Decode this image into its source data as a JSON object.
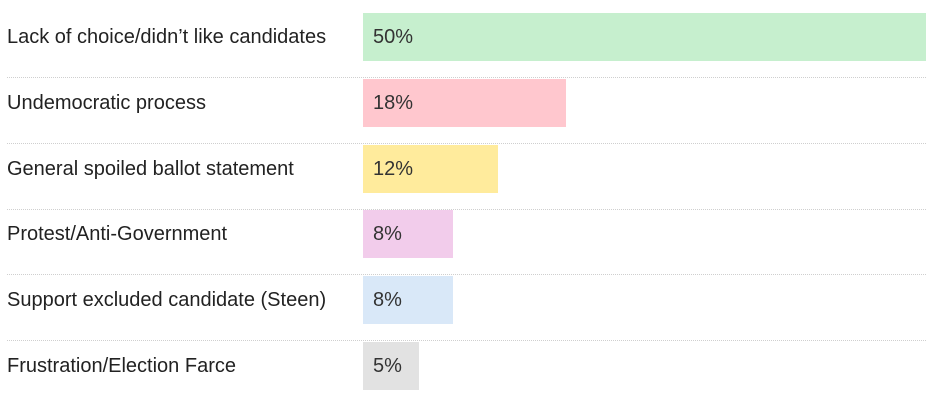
{
  "chart_data": {
    "type": "bar",
    "orientation": "horizontal",
    "categories": [
      "Lack of choice/didn’t like candidates",
      "Undemocratic process",
      "General spoiled ballot statement",
      "Protest/Anti-Government",
      "Support excluded candidate (Steen)",
      "Frustration/Election Farce"
    ],
    "values": [
      50,
      18,
      12,
      8,
      8,
      5
    ],
    "value_labels": [
      "50%",
      "18%",
      "12%",
      "8%",
      "8%",
      "5%"
    ],
    "colors": [
      "#c6efce",
      "#ffc7ce",
      "#ffeb9c",
      "#f2cceb",
      "#d9e8f8",
      "#e2e2e2"
    ],
    "title": "",
    "xlabel": "",
    "ylabel": "",
    "xlim": [
      0,
      50
    ],
    "grid": false,
    "legend": "none"
  }
}
